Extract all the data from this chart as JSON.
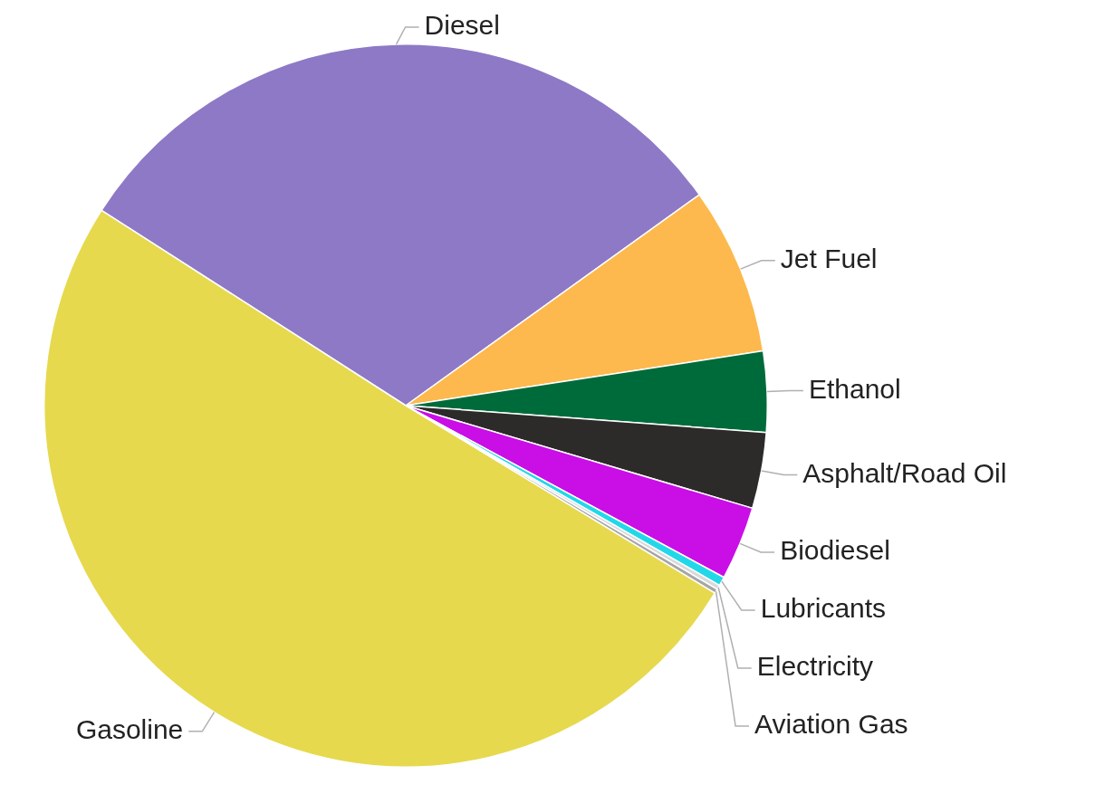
{
  "chart_data": {
    "type": "pie",
    "categories": [
      "Diesel",
      "Jet Fuel",
      "Ethanol",
      "Asphalt/Road Oil",
      "Biodiesel",
      "Lubricants",
      "Electricity",
      "Aviation Gas",
      "Gasoline"
    ],
    "values": [
      31,
      7.5,
      3.6,
      3.4,
      3.3,
      0.4,
      0.2,
      0.2,
      50.4
    ],
    "colors": [
      "#8e79c6",
      "#fdb94e",
      "#006b3a",
      "#2d2a2a",
      "#c90ee6",
      "#22d8e8",
      "#d9d9d9",
      "#a6a6a6",
      "#e6d94e"
    ],
    "legend": false
  }
}
